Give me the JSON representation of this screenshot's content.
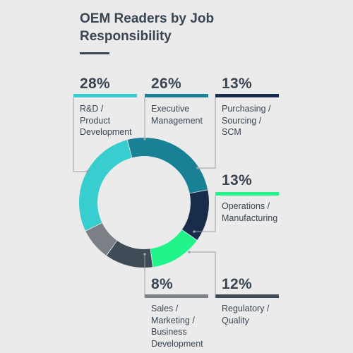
{
  "title_line1": "OEM Readers by Job",
  "title_line2": "Responsibility",
  "chart_data": {
    "type": "pie",
    "title": "OEM Readers by Job Responsibility",
    "donut": true,
    "categories": [
      "R&D / Product Development",
      "Executive Management",
      "Purchasing / Sourcing / SCM",
      "Operations / Manufacturing",
      "Regulatory / Quality",
      "Sales / Marketing / Business Development"
    ],
    "values": [
      28,
      26,
      13,
      13,
      12,
      8
    ],
    "colors": [
      "#38cdcf",
      "#1a8095",
      "#182c4b",
      "#22f48c",
      "#3f4c58",
      "#7b7f86"
    ]
  },
  "items": [
    {
      "pct": "28%",
      "label": "R&D /\nProduct\nDevelopment",
      "color": "#38cdcf"
    },
    {
      "pct": "26%",
      "label": "Executive\nManagement",
      "color": "#1a8095"
    },
    {
      "pct": "13%",
      "label": "Purchasing /\nSourcing /\nSCM",
      "color": "#182c4b"
    },
    {
      "pct": "13%",
      "label": "Operations /\nManufacturing",
      "color": "#22f48c"
    },
    {
      "pct": "8%",
      "label": "Sales /\nMarketing /\nBusiness\nDevelopment",
      "color": "#7b7f86"
    },
    {
      "pct": "12%",
      "label": "Regulatory /\nQuality",
      "color": "#3f4c58"
    }
  ]
}
